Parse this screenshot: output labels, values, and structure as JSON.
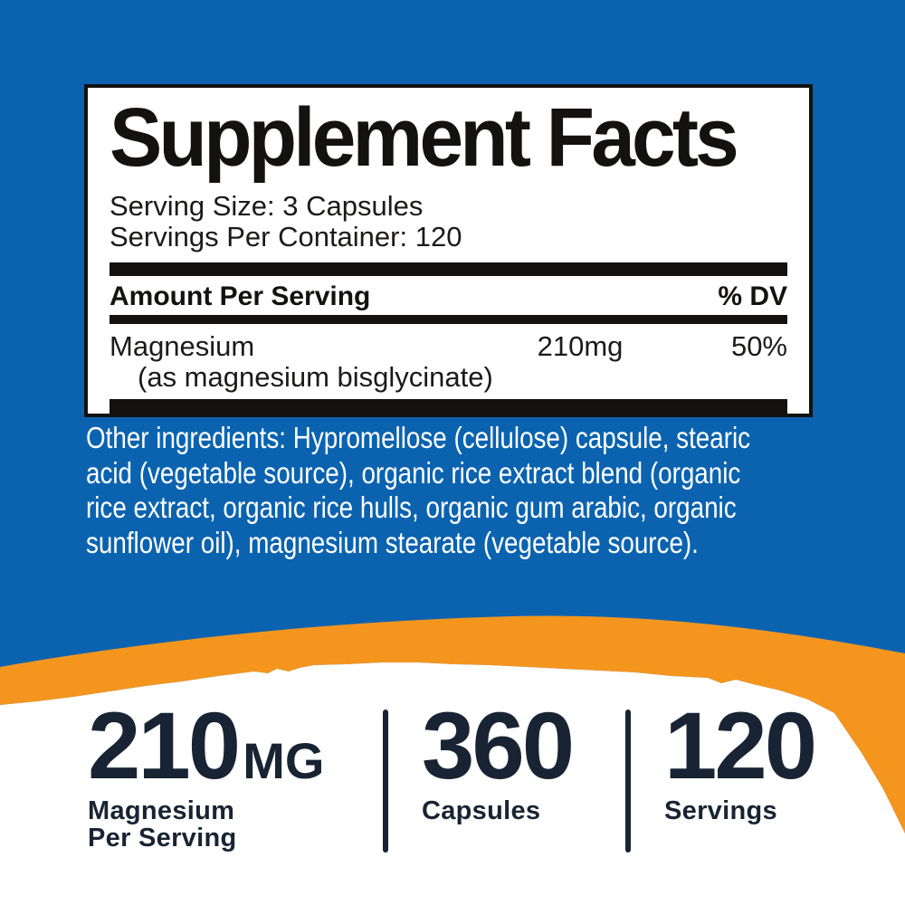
{
  "colors": {
    "background_blue": "#0b63b0",
    "accent_orange": "#f4961e",
    "navy": "#182433",
    "ink_black": "#141210"
  },
  "supplement_facts": {
    "title": "Supplement Facts",
    "serving_size": "Serving Size: 3 Capsules",
    "servings_per_container": "Servings Per Container: 120",
    "amount_header": "Amount Per Serving",
    "dv_header": "% DV",
    "rows": [
      {
        "name": "Magnesium",
        "detail": "(as magnesium bisglycinate)",
        "amount": "210mg",
        "dv": "50%"
      }
    ]
  },
  "other_ingredients": {
    "lines": [
      "Other ingredients: Hypromellose (cellulose) capsule, stearic",
      "acid (vegetable source), organic rice extract blend (organic",
      "rice extract, organic rice hulls, organic gum arabic, organic",
      "sunflower oil), magnesium stearate (vegetable source)."
    ]
  },
  "highlights": {
    "stats": [
      {
        "value": "210",
        "unit": "MG",
        "label_lines": [
          "Magnesium",
          "Per Serving"
        ]
      },
      {
        "value": "360",
        "unit": "",
        "label_lines": [
          "Capsules"
        ]
      },
      {
        "value": "120",
        "unit": "",
        "label_lines": [
          "Servings"
        ]
      }
    ]
  }
}
